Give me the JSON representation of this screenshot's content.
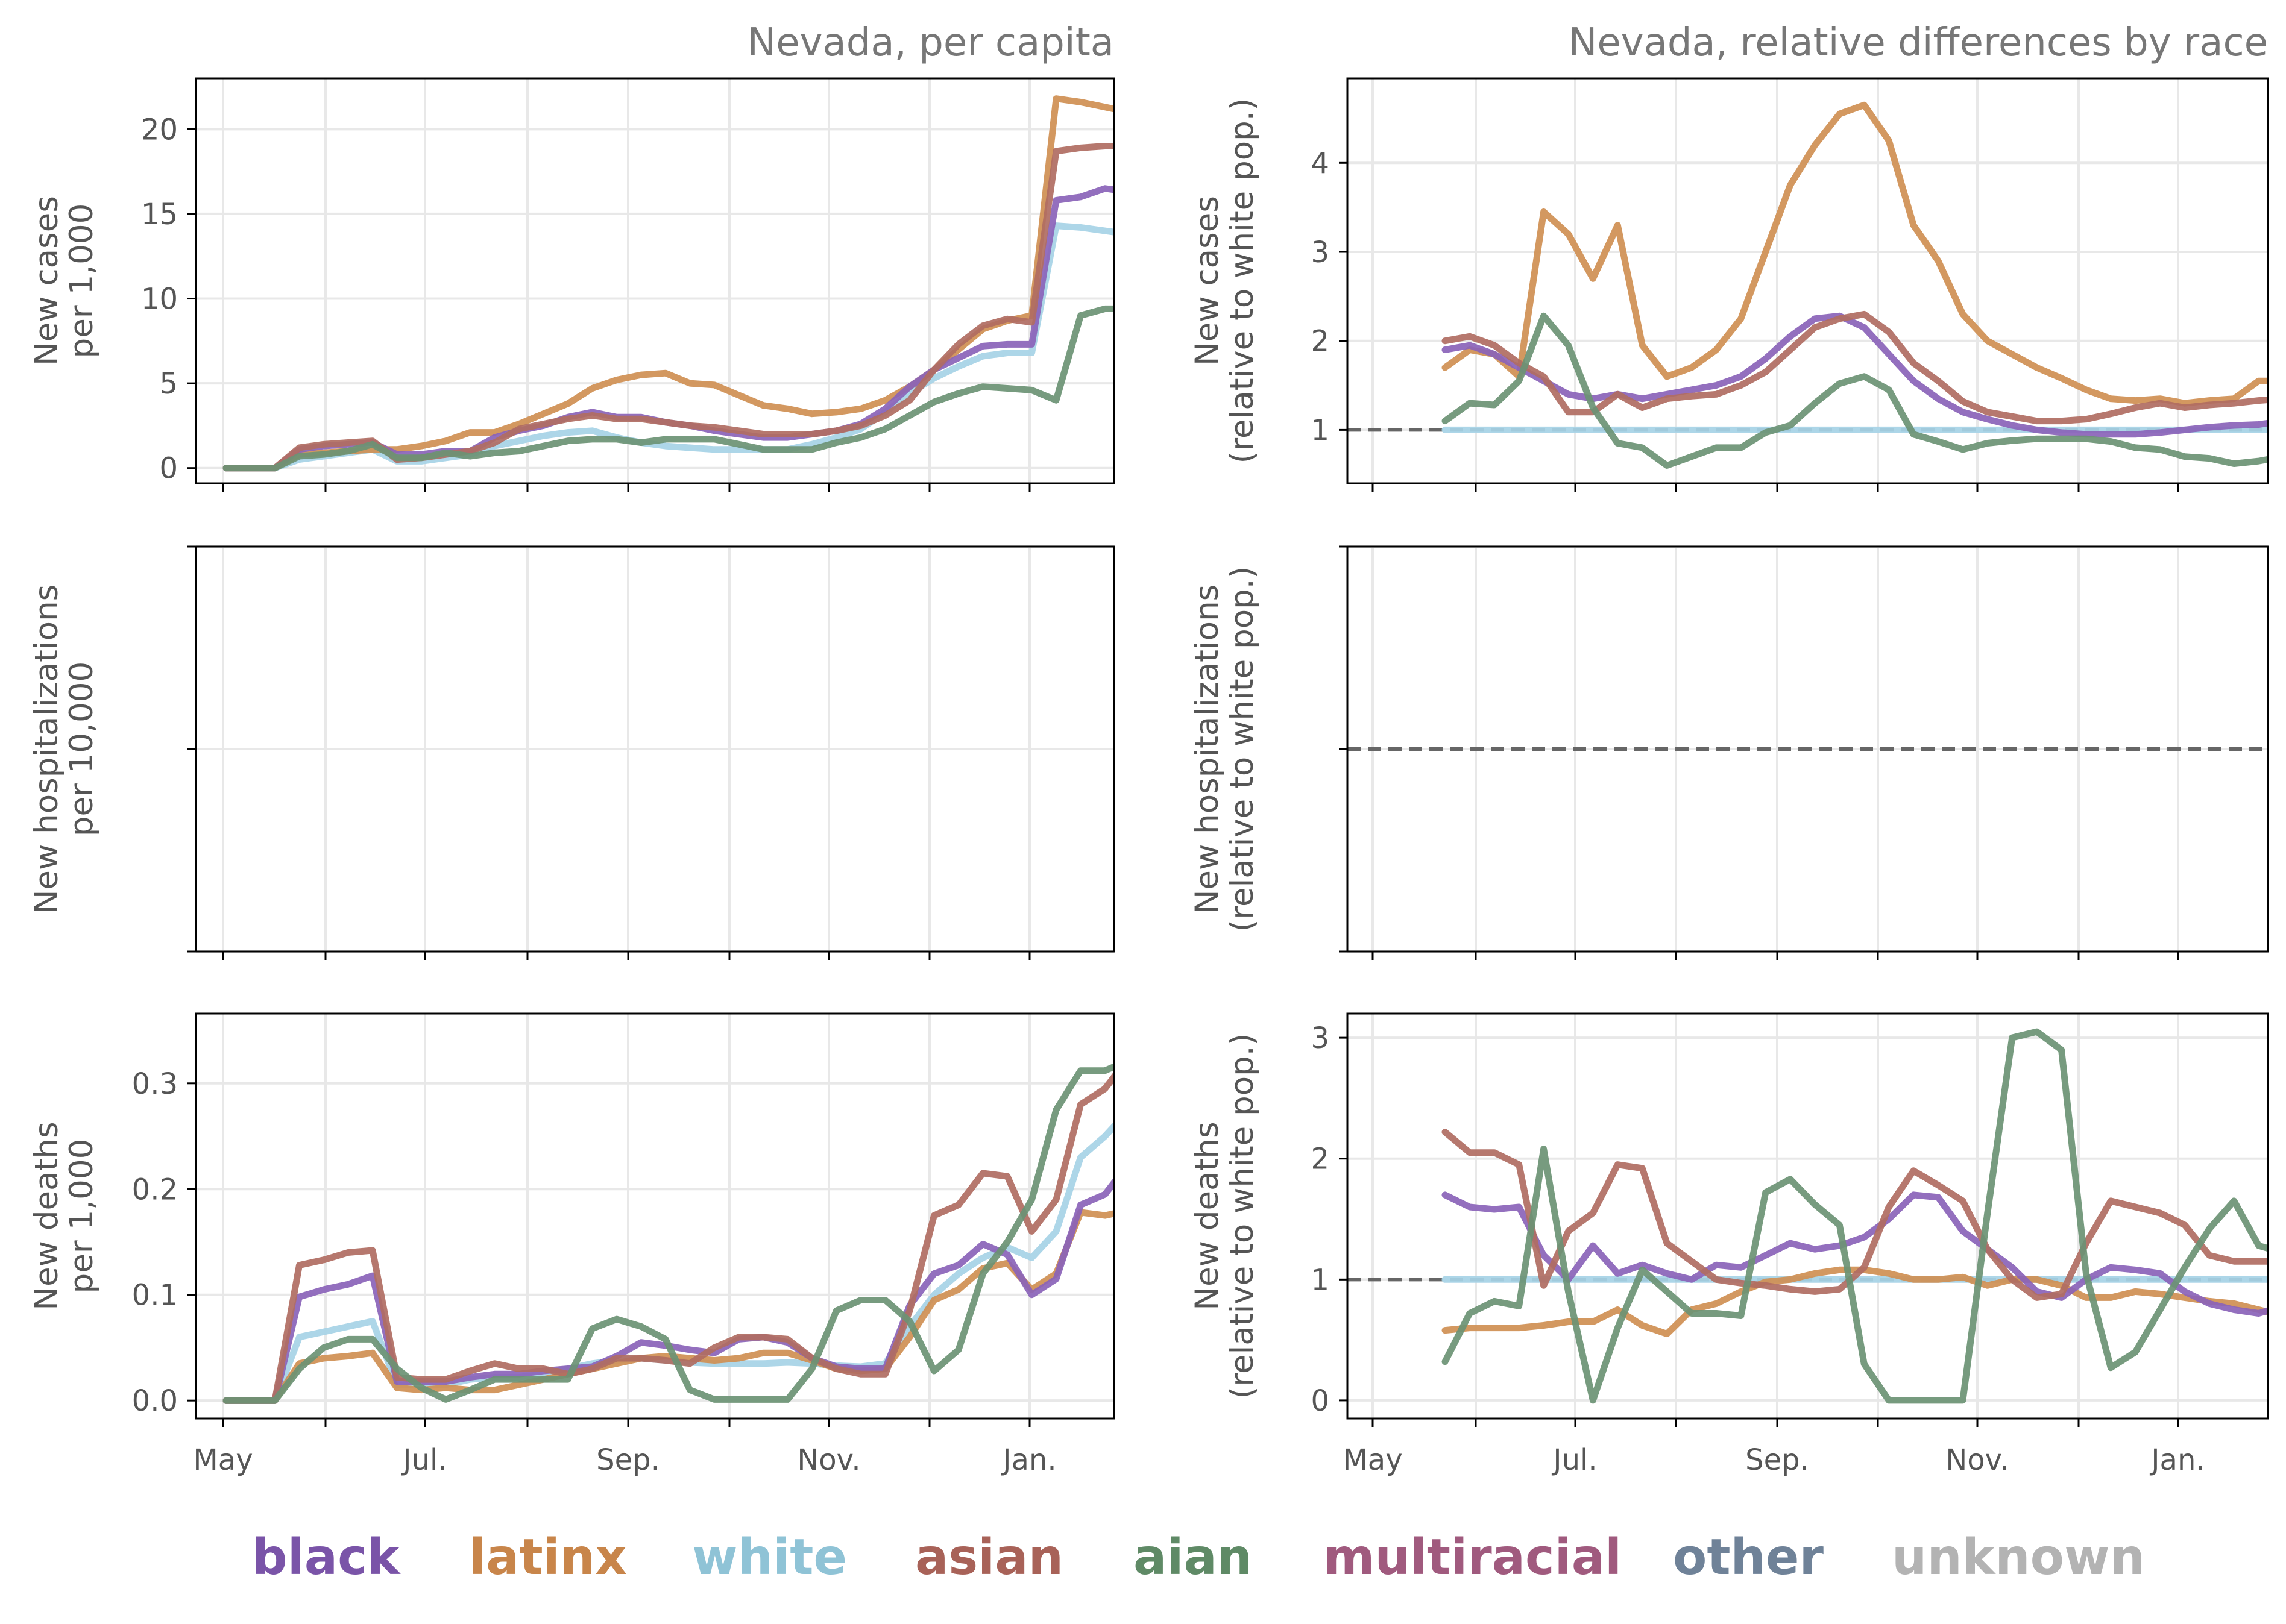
{
  "chart_data": [
    {
      "type": "line",
      "title": "Nevada, per capita",
      "ylabel": [
        "New cases",
        "per 1,000"
      ],
      "xlabel": "",
      "x_ticks": [
        "May",
        "",
        "Jul.",
        "",
        "Sep.",
        "",
        "Nov.",
        "",
        "Jan."
      ],
      "y_ticks": [
        "0",
        "5",
        "10",
        "15",
        "20"
      ],
      "ylim": [
        -0.9,
        23
      ],
      "grid": true,
      "series": [
        {
          "name": "black",
          "values": [
            0,
            0,
            0,
            1.1,
            1.3,
            1.4,
            1.5,
            0.8,
            0.8,
            1.0,
            1.0,
            1.8,
            2.2,
            2.5,
            3.0,
            3.3,
            3.0,
            3.0,
            2.7,
            2.5,
            2.2,
            2.0,
            1.8,
            1.8,
            2.0,
            2.2,
            2.6,
            3.5,
            4.8,
            5.8,
            6.5,
            7.2,
            7.3,
            7.3,
            15.8,
            16.0,
            16.5,
            16.3
          ]
        },
        {
          "name": "latinx",
          "values": [
            0,
            0,
            0,
            0.8,
            0.9,
            1.0,
            1.1,
            1.1,
            1.3,
            1.6,
            2.1,
            2.1,
            2.6,
            3.2,
            3.8,
            4.7,
            5.2,
            5.5,
            5.6,
            5.0,
            4.9,
            4.3,
            3.7,
            3.5,
            3.2,
            3.3,
            3.5,
            4.0,
            4.8,
            5.8,
            7.0,
            8.2,
            8.7,
            9.0,
            21.8,
            21.6,
            21.3,
            21.0
          ]
        },
        {
          "name": "white",
          "values": [
            0,
            0,
            0,
            0.5,
            0.7,
            0.9,
            1.1,
            0.4,
            0.4,
            0.6,
            0.8,
            1.3,
            1.6,
            1.9,
            2.1,
            2.2,
            1.8,
            1.5,
            1.3,
            1.2,
            1.1,
            1.1,
            1.1,
            1.1,
            1.4,
            1.8,
            2.3,
            3.3,
            4.4,
            5.3,
            6.0,
            6.6,
            6.8,
            6.8,
            14.3,
            14.2,
            14.0,
            13.8
          ]
        },
        {
          "name": "asian",
          "values": [
            0,
            0,
            0,
            1.2,
            1.4,
            1.5,
            1.6,
            0.5,
            0.6,
            0.8,
            1.0,
            1.5,
            2.3,
            2.6,
            2.9,
            3.1,
            2.9,
            2.9,
            2.7,
            2.5,
            2.4,
            2.2,
            2.0,
            2.0,
            2.0,
            2.2,
            2.5,
            3.1,
            4.0,
            5.8,
            7.3,
            8.4,
            8.8,
            8.6,
            18.7,
            18.9,
            19.0,
            19.0
          ]
        },
        {
          "name": "aian",
          "values": [
            0,
            0,
            0,
            0.7,
            0.8,
            1.0,
            1.4,
            0.6,
            0.6,
            0.9,
            0.7,
            0.9,
            1.0,
            1.3,
            1.6,
            1.7,
            1.7,
            1.5,
            1.7,
            1.7,
            1.7,
            1.4,
            1.1,
            1.1,
            1.1,
            1.5,
            1.8,
            2.3,
            3.1,
            3.9,
            4.4,
            4.8,
            4.7,
            4.6,
            4.0,
            9.0,
            9.4,
            9.4
          ]
        }
      ]
    },
    {
      "type": "line",
      "title": "Nevada, relative differences by race",
      "ylabel": [
        "New cases",
        "(relative to white pop.)"
      ],
      "xlabel": "",
      "x_ticks": [
        "May",
        "",
        "Jul.",
        "",
        "Sep.",
        "",
        "Nov.",
        "",
        "Jan."
      ],
      "y_ticks": [
        "1",
        "2",
        "3",
        "4"
      ],
      "ylim": [
        0.4,
        4.95
      ],
      "grid": true,
      "reference_line": 1,
      "series": [
        {
          "name": "black",
          "values": [
            1.9,
            1.95,
            1.85,
            1.7,
            1.55,
            1.4,
            1.35,
            1.4,
            1.35,
            1.4,
            1.45,
            1.5,
            1.6,
            1.8,
            2.05,
            2.25,
            2.28,
            2.15,
            1.85,
            1.55,
            1.35,
            1.2,
            1.12,
            1.05,
            1.0,
            0.97,
            0.95,
            0.95,
            0.95,
            0.97,
            1.0,
            1.03,
            1.05,
            1.06,
            1.1,
            1.17,
            1.22
          ]
        },
        {
          "name": "latinx",
          "values": [
            1.7,
            1.9,
            1.85,
            1.6,
            3.45,
            3.2,
            2.7,
            3.3,
            1.95,
            1.6,
            1.7,
            1.9,
            2.25,
            3.0,
            3.75,
            4.2,
            4.55,
            4.65,
            4.25,
            3.3,
            2.9,
            2.3,
            2.0,
            1.85,
            1.7,
            1.58,
            1.45,
            1.35,
            1.33,
            1.35,
            1.3,
            1.33,
            1.35,
            1.55,
            1.55,
            1.52,
            1.5
          ]
        },
        {
          "name": "white",
          "values": [
            1,
            1,
            1,
            1,
            1,
            1,
            1,
            1,
            1,
            1,
            1,
            1,
            1,
            1,
            1,
            1,
            1,
            1,
            1,
            1,
            1,
            1,
            1,
            1,
            1,
            1,
            1,
            1,
            1,
            1,
            1,
            1,
            1,
            1,
            1,
            1,
            1
          ]
        },
        {
          "name": "asian",
          "values": [
            2.0,
            2.05,
            1.95,
            1.75,
            1.6,
            1.2,
            1.2,
            1.4,
            1.25,
            1.35,
            1.38,
            1.4,
            1.5,
            1.65,
            1.9,
            2.15,
            2.25,
            2.3,
            2.1,
            1.75,
            1.55,
            1.32,
            1.2,
            1.15,
            1.1,
            1.1,
            1.12,
            1.18,
            1.25,
            1.3,
            1.25,
            1.28,
            1.3,
            1.33,
            1.35,
            1.38,
            1.4
          ]
        },
        {
          "name": "aian",
          "values": [
            1.1,
            1.3,
            1.28,
            1.55,
            2.28,
            1.95,
            1.25,
            0.85,
            0.8,
            0.6,
            0.7,
            0.8,
            0.8,
            0.97,
            1.05,
            1.3,
            1.52,
            1.6,
            1.45,
            0.95,
            0.87,
            0.78,
            0.85,
            0.88,
            0.9,
            0.9,
            0.9,
            0.87,
            0.8,
            0.78,
            0.7,
            0.68,
            0.62,
            0.65,
            0.7,
            0.7,
            0.72
          ]
        }
      ]
    },
    {
      "type": "line",
      "title": "",
      "ylabel": [
        "New hospitalizations",
        "per 10,000"
      ],
      "xlabel": "",
      "x_ticks": [
        "May",
        "",
        "Jul.",
        "",
        "Sep.",
        "",
        "Nov.",
        "",
        "Jan."
      ],
      "y_ticks": [
        "",
        "",
        ""
      ],
      "grid": true,
      "series": []
    },
    {
      "type": "line",
      "title": "",
      "ylabel": [
        "New hospitalizations",
        "(relative to white pop.)"
      ],
      "xlabel": "",
      "x_ticks": [
        "May",
        "",
        "Jul.",
        "",
        "Sep.",
        "",
        "Nov.",
        "",
        "Jan."
      ],
      "y_ticks": [
        "",
        "",
        ""
      ],
      "grid": true,
      "reference_line": 1,
      "series": []
    },
    {
      "type": "line",
      "title": "",
      "ylabel": [
        "New deaths",
        "per 1,000"
      ],
      "xlabel": "",
      "x_ticks": [
        "May",
        "",
        "Jul.",
        "",
        "Sep.",
        "",
        "Nov.",
        "",
        "Jan."
      ],
      "y_ticks": [
        "0.0",
        "0.1",
        "0.2",
        "0.3"
      ],
      "ylim": [
        -0.017,
        0.366
      ],
      "grid": true,
      "series": [
        {
          "name": "black",
          "values": [
            0,
            0,
            0,
            0.098,
            0.105,
            0.11,
            0.118,
            0.018,
            0.018,
            0.018,
            0.022,
            0.025,
            0.025,
            0.028,
            0.03,
            0.032,
            0.042,
            0.055,
            0.052,
            0.048,
            0.045,
            0.058,
            0.06,
            0.055,
            0.04,
            0.032,
            0.03,
            0.03,
            0.09,
            0.12,
            0.128,
            0.148,
            0.138,
            0.1,
            0.115,
            0.185,
            0.195,
            0.225
          ]
        },
        {
          "name": "latinx",
          "values": [
            0,
            0,
            0,
            0.035,
            0.04,
            0.042,
            0.045,
            0.012,
            0.01,
            0.012,
            0.01,
            0.01,
            0.015,
            0.02,
            0.025,
            0.03,
            0.035,
            0.04,
            0.042,
            0.04,
            0.038,
            0.04,
            0.045,
            0.045,
            0.038,
            0.03,
            0.028,
            0.03,
            0.06,
            0.095,
            0.105,
            0.125,
            0.13,
            0.105,
            0.12,
            0.178,
            0.175,
            0.18
          ]
        },
        {
          "name": "white",
          "values": [
            0,
            0,
            0,
            0.06,
            0.065,
            0.07,
            0.075,
            0.015,
            0.015,
            0.015,
            0.02,
            0.022,
            0.022,
            0.025,
            0.03,
            0.035,
            0.038,
            0.04,
            0.038,
            0.036,
            0.035,
            0.035,
            0.035,
            0.036,
            0.035,
            0.033,
            0.032,
            0.035,
            0.07,
            0.1,
            0.12,
            0.135,
            0.145,
            0.135,
            0.16,
            0.23,
            0.25,
            0.275
          ]
        },
        {
          "name": "asian",
          "values": [
            0,
            0,
            0,
            0.128,
            0.133,
            0.14,
            0.142,
            0.022,
            0.02,
            0.02,
            0.028,
            0.035,
            0.03,
            0.03,
            0.025,
            0.03,
            0.04,
            0.04,
            0.038,
            0.035,
            0.05,
            0.06,
            0.06,
            0.058,
            0.04,
            0.03,
            0.025,
            0.025,
            0.085,
            0.175,
            0.185,
            0.215,
            0.212,
            0.16,
            0.19,
            0.28,
            0.295,
            0.325
          ]
        },
        {
          "name": "aian",
          "values": [
            0,
            0,
            0,
            0.03,
            0.05,
            0.058,
            0.058,
            0.03,
            0.012,
            0.001,
            0.01,
            0.02,
            0.02,
            0.02,
            0.02,
            0.068,
            0.077,
            0.07,
            0.058,
            0.01,
            0.001,
            0.001,
            0.001,
            0.001,
            0.03,
            0.085,
            0.095,
            0.095,
            0.075,
            0.028,
            0.048,
            0.12,
            0.15,
            0.19,
            0.275,
            0.312,
            0.312,
            0.322
          ]
        }
      ]
    },
    {
      "type": "line",
      "title": "",
      "ylabel": [
        "New deaths",
        "(relative to white pop.)"
      ],
      "xlabel": "",
      "x_ticks": [
        "May",
        "",
        "Jul.",
        "",
        "Sep.",
        "",
        "Nov.",
        "",
        "Jan."
      ],
      "y_ticks": [
        "0",
        "1",
        "2",
        "3"
      ],
      "ylim": [
        -0.15,
        3.2
      ],
      "grid": true,
      "reference_line": 1,
      "series": [
        {
          "name": "black",
          "values": [
            1.7,
            1.6,
            1.58,
            1.6,
            1.2,
            1.0,
            1.28,
            1.05,
            1.12,
            1.05,
            1.0,
            1.12,
            1.1,
            1.2,
            1.3,
            1.25,
            1.28,
            1.35,
            1.5,
            1.7,
            1.68,
            1.4,
            1.25,
            1.1,
            0.9,
            0.85,
            1.0,
            1.1,
            1.08,
            1.05,
            0.9,
            0.8,
            0.75,
            0.72,
            0.78,
            0.78,
            0.85
          ]
        },
        {
          "name": "latinx",
          "values": [
            0.58,
            0.6,
            0.6,
            0.6,
            0.62,
            0.65,
            0.65,
            0.75,
            0.62,
            0.55,
            0.75,
            0.8,
            0.9,
            0.98,
            1.0,
            1.05,
            1.08,
            1.08,
            1.05,
            1.0,
            1.0,
            1.02,
            0.95,
            1.0,
            1.0,
            0.95,
            0.85,
            0.85,
            0.9,
            0.88,
            0.85,
            0.82,
            0.8,
            0.75,
            0.7,
            0.68,
            0.65
          ]
        },
        {
          "name": "white",
          "values": [
            1,
            1,
            1,
            1,
            1,
            1,
            1,
            1,
            1,
            1,
            1,
            1,
            1,
            1,
            1,
            1,
            1,
            1,
            1,
            1,
            1,
            1,
            1,
            1,
            1,
            1,
            1,
            1,
            1,
            1,
            1,
            1,
            1,
            1,
            1,
            1,
            1
          ]
        },
        {
          "name": "asian",
          "values": [
            2.22,
            2.05,
            2.05,
            1.95,
            0.95,
            1.4,
            1.55,
            1.95,
            1.92,
            1.3,
            1.15,
            1.0,
            0.97,
            0.95,
            0.92,
            0.9,
            0.92,
            1.1,
            1.6,
            1.9,
            1.78,
            1.65,
            1.25,
            1.0,
            0.85,
            0.88,
            1.3,
            1.65,
            1.6,
            1.55,
            1.45,
            1.2,
            1.15,
            1.15,
            1.15,
            1.15,
            1.2
          ]
        },
        {
          "name": "aian",
          "values": [
            0.32,
            0.72,
            0.82,
            0.78,
            2.08,
            0.9,
            0.0,
            0.6,
            1.08,
            0.9,
            0.72,
            0.72,
            0.7,
            1.72,
            1.83,
            1.62,
            1.45,
            0.3,
            0.0,
            0.0,
            0.0,
            0.0,
            1.55,
            3.0,
            3.05,
            2.9,
            1.05,
            0.27,
            0.4,
            0.75,
            1.1,
            1.42,
            1.65,
            1.28,
            1.22,
            1.18,
            1.1
          ]
        }
      ]
    }
  ],
  "legend": [
    {
      "label": "black",
      "color": "#7a54a8"
    },
    {
      "label": "latinx",
      "color": "#c8854a"
    },
    {
      "label": "white",
      "color": "#8fc3d6"
    },
    {
      "label": "asian",
      "color": "#a86258"
    },
    {
      "label": "aian",
      "color": "#5f8a66"
    },
    {
      "label": "multiracial",
      "color": "#a05a7e"
    },
    {
      "label": "other",
      "color": "#6f8298"
    },
    {
      "label": "unknown",
      "color": "#b3b3b3"
    }
  ],
  "colors": {
    "black": "#8a63b8",
    "latinx": "#cf8f52",
    "white": "#a6d3e6",
    "asian": "#b06c62",
    "aian": "#6b9374",
    "reference": "#666666",
    "grid": "#e8e8e8"
  }
}
